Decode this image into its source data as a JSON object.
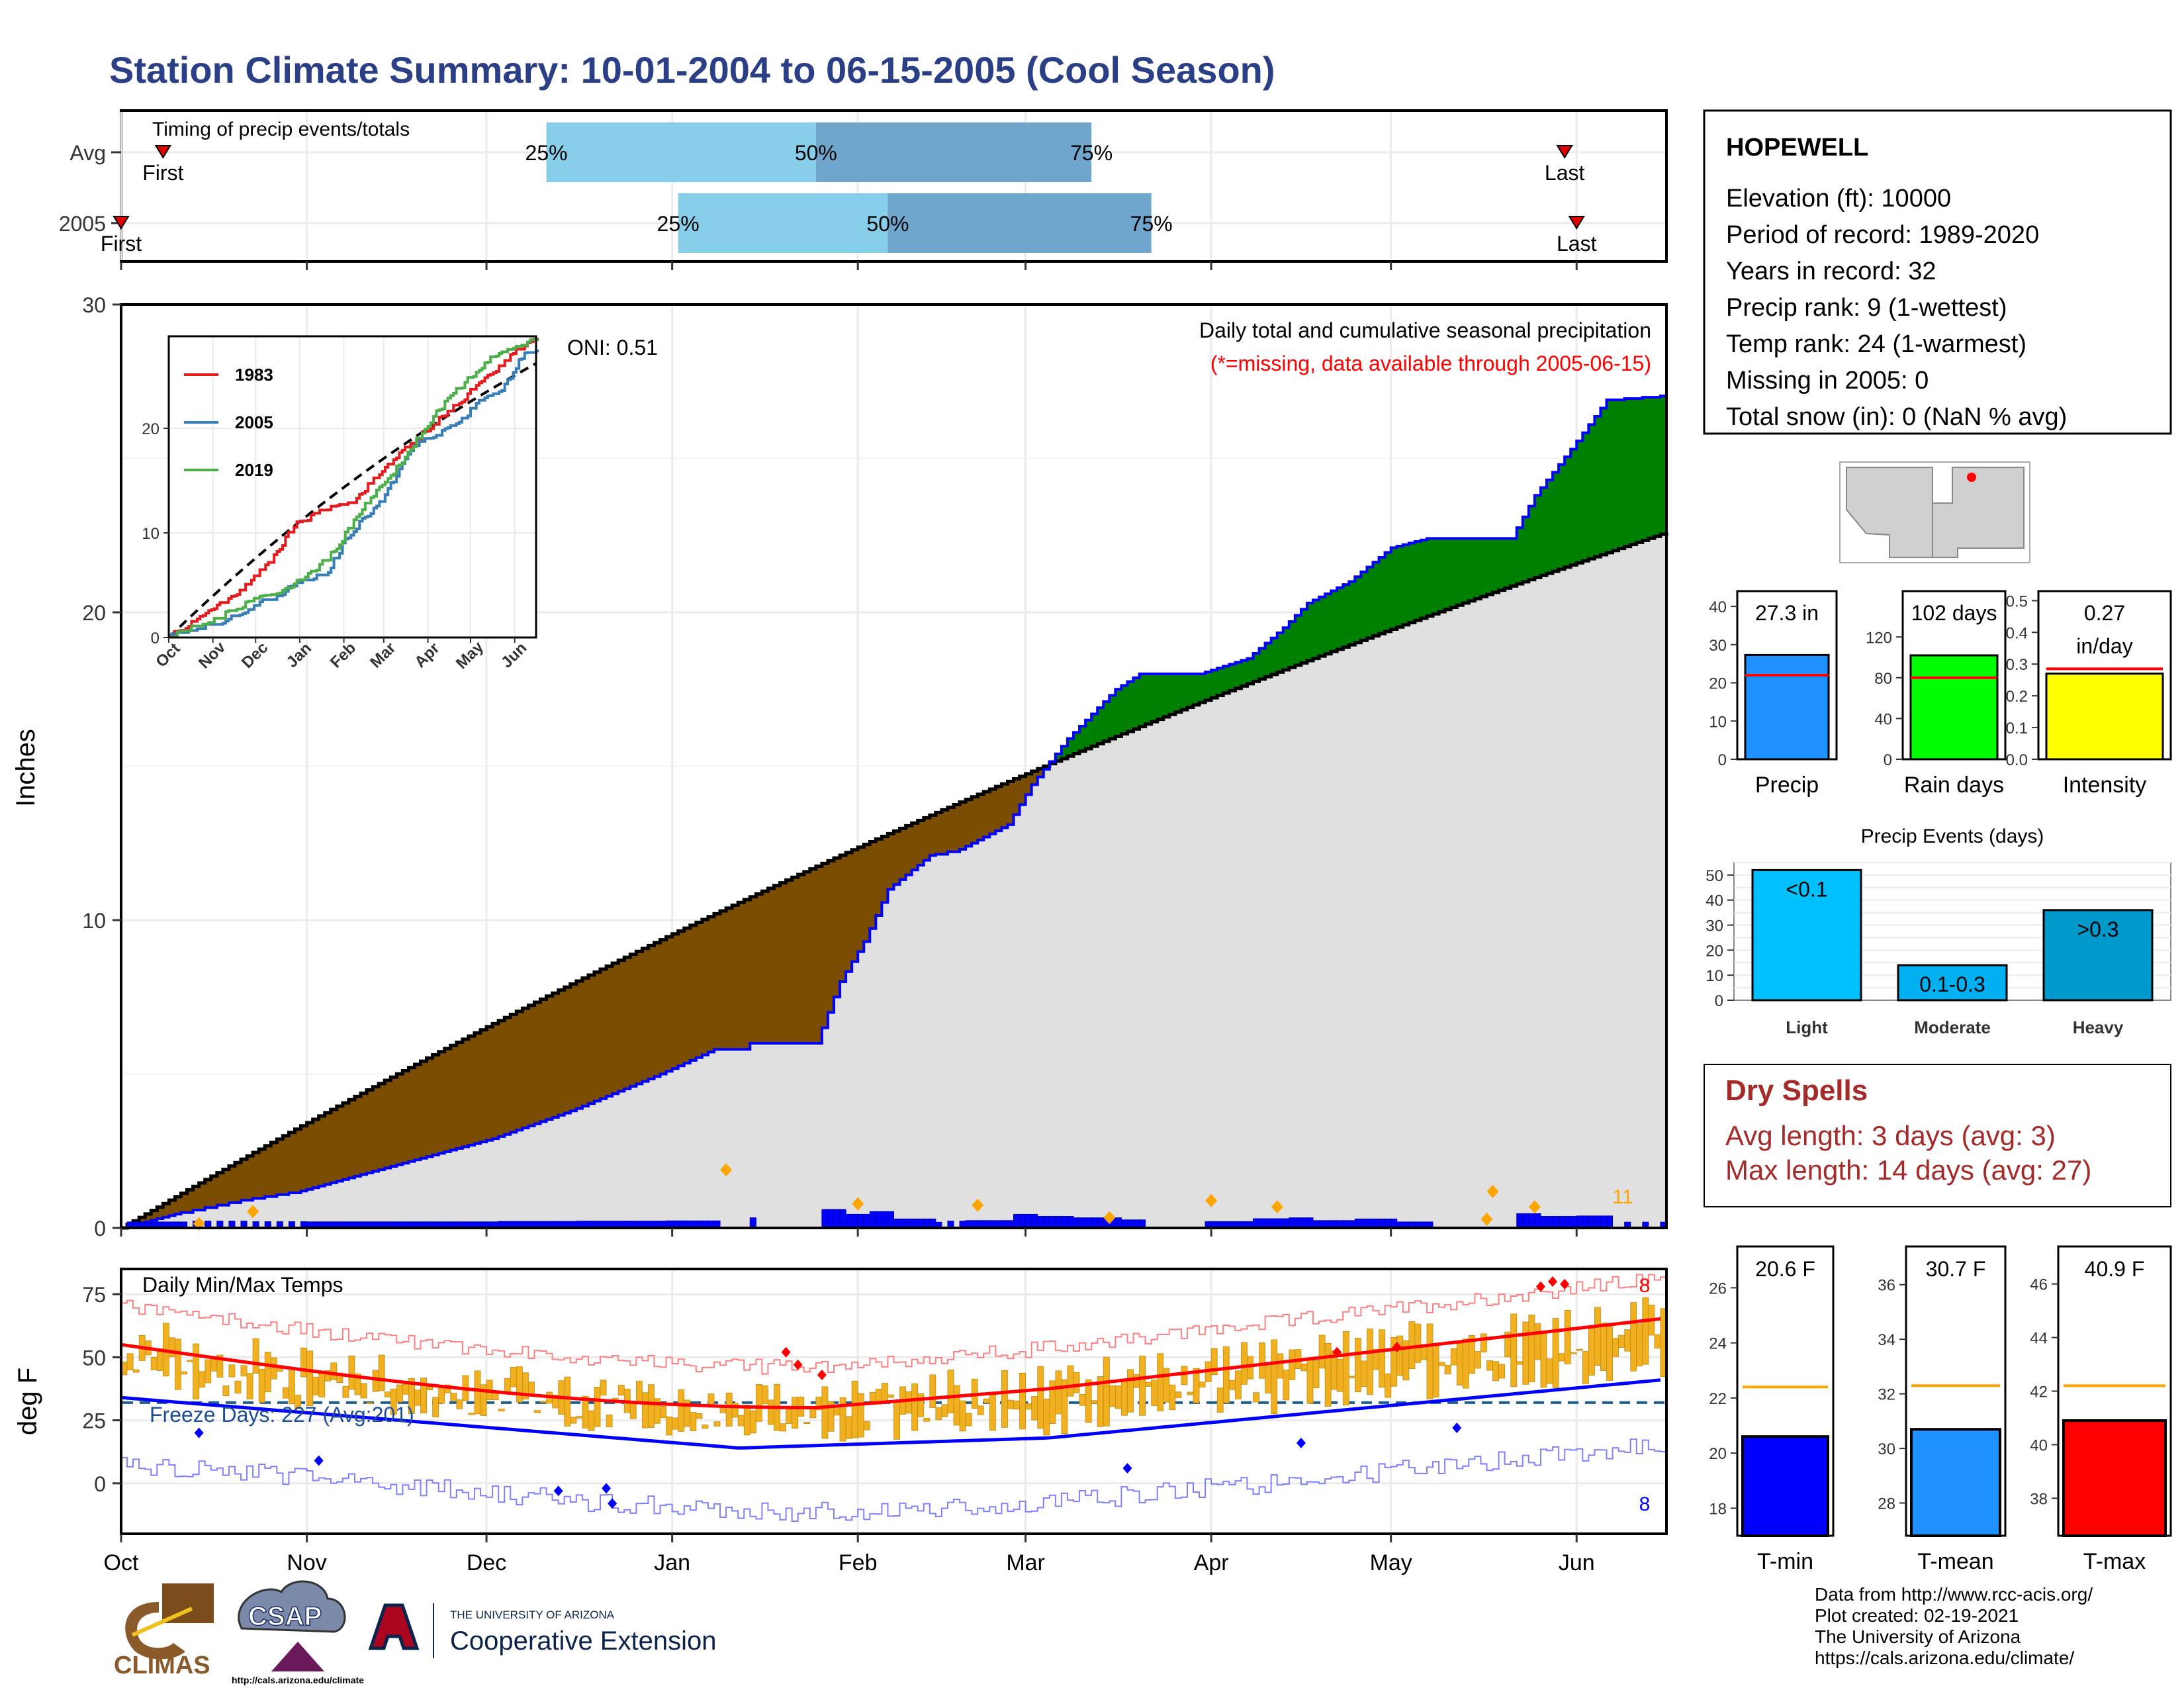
{
  "title": "Station Climate Summary: 10-01-2004 to 06-15-2005 (Cool Season)",
  "colors": {
    "title": "#2b3f87",
    "observed_area": "#e0e0e0",
    "above_normal": "#008000",
    "below_normal": "#7a4d00",
    "daily_bar": "#0000ff",
    "event_marker": "#ffa500",
    "missing_note": "#ff0000",
    "temp_bar": "#f0b020",
    "tmax_line": "#ff0000",
    "tmin_line": "#0000ff",
    "dry_spell_text": "#a52a2a"
  },
  "timing_panel": {
    "title": "Timing of precip events/totals",
    "rows": [
      {
        "label": "Avg",
        "first_date": "2004-10-08",
        "first_label": "First",
        "p25_date": "2004-12-11",
        "p50_date": "2005-01-25",
        "p75_date": "2005-03-12",
        "p25": "25%",
        "p50": "50%",
        "p75": "75%",
        "last_date": "2005-05-30",
        "last_label": "Last"
      },
      {
        "label": "2005",
        "first_date": "2004-10-01",
        "first_label": "First",
        "p25_date": "2005-01-02",
        "p50_date": "2005-02-06",
        "p75_date": "2005-03-22",
        "p25": "25%",
        "p50": "50%",
        "p75": "75%",
        "last_date": "2005-06-01",
        "last_label": "Last"
      }
    ]
  },
  "main_panel": {
    "ylabel": "Inches",
    "y_ticks": [
      "0",
      "10",
      "20",
      "30"
    ],
    "ylim": [
      0,
      30
    ],
    "oni": "ONI: 0.51",
    "caption": "Daily total and cumulative seasonal precipitation",
    "missing_note": "(*=missing, data available through 2005-06-15)",
    "event_count": "11"
  },
  "inset": {
    "y_ticks": [
      "0",
      "10",
      "20"
    ],
    "x_ticks": [
      "Oct",
      "Nov",
      "Dec",
      "Jan",
      "Feb",
      "Mar",
      "Apr",
      "May",
      "Jun"
    ],
    "legend": [
      {
        "name": "1983",
        "color": "#e41a1c"
      },
      {
        "name": "2005",
        "color": "#377eb8"
      },
      {
        "name": "2019",
        "color": "#4daf4a"
      }
    ]
  },
  "temp_panel": {
    "title": "Daily Min/Max Temps",
    "ylabel": "deg F",
    "y_ticks": [
      "0",
      "25",
      "50",
      "75"
    ],
    "freeze_days": "Freeze Days: 227 (Avg:201)",
    "max_count": "8",
    "min_count": "8"
  },
  "x_axis": {
    "ticks": [
      "Oct",
      "Nov",
      "Dec",
      "Jan",
      "Feb",
      "Mar",
      "Apr",
      "May",
      "Jun"
    ],
    "tick_dates": [
      "2004-10-01",
      "2004-11-01",
      "2004-12-01",
      "2005-01-01",
      "2005-02-01",
      "2005-03-01",
      "2005-04-01",
      "2005-05-01",
      "2005-06-01"
    ]
  },
  "station": {
    "name": "HOPEWELL",
    "lines": [
      "Elevation (ft): 10000",
      "Period of record: 1989-2020",
      "Years in record: 32",
      "Precip rank: 9 (1-wettest)",
      "Temp rank: 24 (1-warmest)",
      "Missing in 2005: 0",
      "Total snow (in): 0 (NaN % avg)"
    ]
  },
  "summary_bars": [
    {
      "label": "Precip",
      "value_label": "27.3 in",
      "value": 27.3,
      "avg": 22,
      "ymax": 44,
      "ticks": [
        "0",
        "10",
        "20",
        "30",
        "40"
      ],
      "color": "#1e90ff"
    },
    {
      "label": "Rain days",
      "value_label": "102 days",
      "value": 102,
      "avg": 80,
      "ymax": 165,
      "ticks": [
        "0",
        "40",
        "80",
        "120"
      ],
      "color": "#00ff00"
    },
    {
      "label": "Intensity",
      "value_label_1": "0.27",
      "value_label_2": "in/day",
      "value": 0.27,
      "avg": 0.285,
      "ymax": 0.53,
      "ticks": [
        "0.0",
        "0.1",
        "0.2",
        "0.3",
        "0.4",
        "0.5"
      ],
      "color": "#ffff00"
    }
  ],
  "precip_events": {
    "title": "Precip Events (days)",
    "ticks": [
      "0",
      "10",
      "20",
      "30",
      "40",
      "50"
    ],
    "ymax": 55,
    "categories": [
      "Light",
      "Moderate",
      "Heavy"
    ],
    "labels": [
      "<0.1",
      "0.1-0.3",
      ">0.3"
    ],
    "values": [
      52,
      14,
      36
    ],
    "colors": [
      "#00bfff",
      "#00b0f0",
      "#0099cc"
    ]
  },
  "dry_spells": {
    "title": "Dry Spells",
    "avg": "Avg length: 3 days (avg: 3)",
    "max": "Max length: 14 days (avg: 27)"
  },
  "temp_bars": [
    {
      "label": "T-min",
      "value_label": "20.6 F",
      "value": 20.6,
      "avg": 22.4,
      "ymin": 17,
      "ymax": 27.5,
      "ticks": [
        "18",
        "20",
        "22",
        "24",
        "26"
      ],
      "color": "#0000ff"
    },
    {
      "label": "T-mean",
      "value_label": "30.7 F",
      "value": 30.7,
      "avg": 32.3,
      "ymin": 26.8,
      "ymax": 37.4,
      "ticks": [
        "28",
        "30",
        "32",
        "34",
        "36"
      ],
      "color": "#1e90ff"
    },
    {
      "label": "T-max",
      "value_label": "40.9 F",
      "value": 40.9,
      "avg": 42.2,
      "ymin": 36.6,
      "ymax": 47.4,
      "ticks": [
        "38",
        "40",
        "42",
        "44",
        "46"
      ],
      "color": "#ff0000"
    }
  ],
  "logos": {
    "climas": "CLIMAS",
    "csap": "CSAP",
    "csap_url": "http://cals.arizona.edu/climate",
    "ua_top": "THE UNIVERSITY OF ARIZONA",
    "ua_bottom": "Cooperative Extension"
  },
  "credits": [
    "Data from http://www.rcc-acis.org/",
    "Plot created: 02-19-2021",
    "The University of Arizona",
    "https://cals.arizona.edu/climate/"
  ]
}
